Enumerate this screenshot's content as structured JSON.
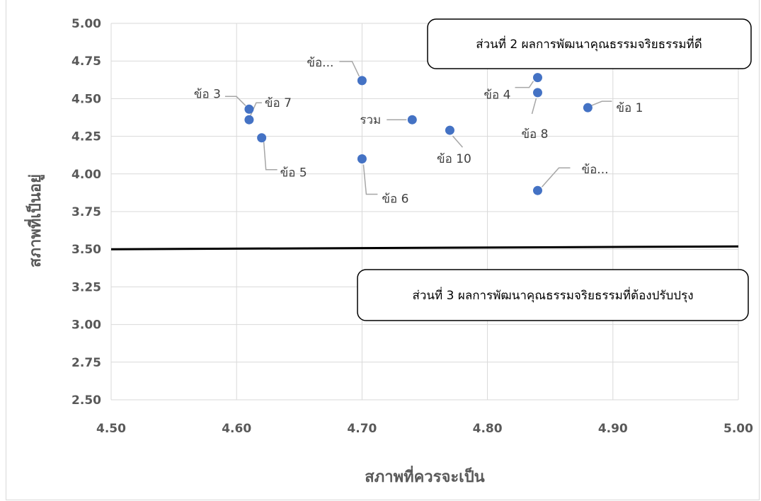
{
  "chart_data": {
    "type": "scatter",
    "xlabel": "สภาพที่ควรจะเป็น",
    "ylabel": "สภาพที่เป็นอยู่",
    "xlim": [
      4.5,
      5.0
    ],
    "ylim": [
      2.5,
      5.0
    ],
    "xticks": [
      "4.50",
      "4.60",
      "4.70",
      "4.80",
      "4.90",
      "5.00"
    ],
    "yticks": [
      "2.50",
      "2.75",
      "3.00",
      "3.25",
      "3.50",
      "3.75",
      "4.00",
      "4.25",
      "4.50",
      "4.75",
      "5.00"
    ],
    "grid": true,
    "marker_color": "#4472c4",
    "threshold_line": {
      "y": 3.5,
      "color": "#000000"
    },
    "points": [
      {
        "label": "ข้อ 1",
        "x": 4.88,
        "y": 4.44
      },
      {
        "label": "ข้อ 3",
        "x": 4.61,
        "y": 4.43
      },
      {
        "label": "ข้อ 4",
        "x": 4.84,
        "y": 4.64
      },
      {
        "label": "ข้อ 5",
        "x": 4.62,
        "y": 4.24
      },
      {
        "label": "ข้อ 6",
        "x": 4.7,
        "y": 4.1
      },
      {
        "label": "ข้อ 7",
        "x": 4.61,
        "y": 4.36
      },
      {
        "label": "ข้อ 8",
        "x": 4.84,
        "y": 4.54
      },
      {
        "label": "ข้อ 10",
        "x": 4.77,
        "y": 4.29
      },
      {
        "label": "ข้อ...",
        "x": 4.7,
        "y": 4.62
      },
      {
        "label": "ข้อ...",
        "x": 4.84,
        "y": 3.89
      },
      {
        "label": "รวม",
        "x": 4.74,
        "y": 4.36
      }
    ],
    "annotations": [
      {
        "text": "ส่วนที่ 2 ผลการพัฒนาคุณธรรมจริยธรรมที่ดี"
      },
      {
        "text": "ส่วนที่ 3 ผลการพัฒนาคุณธรรมจริยธรรมที่ต้องปรับปรุง"
      }
    ]
  }
}
